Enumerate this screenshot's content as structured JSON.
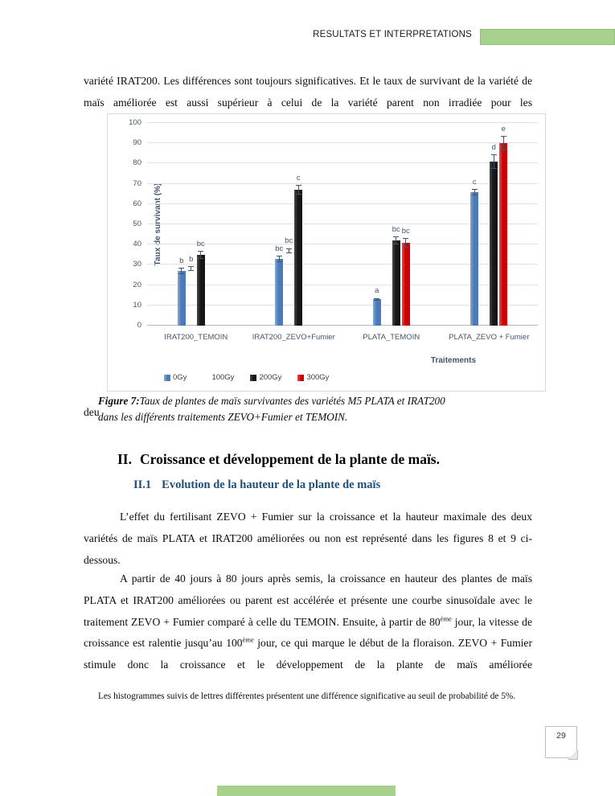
{
  "header": {
    "title": "RESULTATS ET INTERPRETATIONS"
  },
  "colors": {
    "accent_green": "#a9d18e",
    "subheading_blue": "#1f4e79",
    "axis_text": "#44546a"
  },
  "intro_paragraph": "variété IRAT200. Les différences sont toujours significatives. Et le taux de survivant de la variété de maïs améliorée est aussi supérieur à celui de la variété parent non irradiée pour les",
  "chart_data": {
    "type": "bar",
    "title": "",
    "ylabel": "Taux de survivant (%)",
    "xlabel": "Traitements",
    "ylim": [
      0,
      100
    ],
    "ytick_step": 10,
    "grid": true,
    "legend_position": "bottom",
    "categories": [
      "IRAT200_TEMOIN",
      "IRAT200_ZEVO+Fumier",
      "PLATA_TEMOIN",
      "PLATA_ZEVO + Fumier"
    ],
    "series": [
      {
        "name": "0Gy",
        "color": "#4a7ab8",
        "color_light": "#85a9d4",
        "values": [
          27,
          33,
          13,
          66
        ],
        "errors": [
          1.5,
          1.5,
          0.7,
          1.6
        ],
        "letters": [
          "b",
          "bc",
          "a",
          "c"
        ]
      },
      {
        "name": "100Gy",
        "color": "#c55f17",
        "color_light": "#e2control",
        "values": [
          28,
          37,
          null,
          null
        ],
        "errors": [
          1.2,
          1.3,
          null,
          null
        ],
        "letters": [
          "b",
          "bc",
          "",
          ""
        ]
      },
      {
        "name": "200Gy",
        "color": "#161616",
        "color_light": "#4a4a4a",
        "values": [
          35,
          67,
          42,
          81
        ],
        "errors": [
          2,
          2.3,
          2,
          3.6
        ],
        "letters": [
          "bc",
          "c",
          "bc",
          "d"
        ]
      },
      {
        "name": "300Gy",
        "color": "#cc0000",
        "color_light": "#e55050",
        "values": [
          null,
          null,
          41,
          90
        ],
        "errors": [
          null,
          null,
          2.4,
          3.6
        ],
        "letters": [
          "",
          "",
          "bc",
          "e"
        ]
      }
    ]
  },
  "figure_caption": {
    "label": "Figure 7:",
    "line1": "Taux de plantes de maïs survivantes des variétés M5 PLATA et IRAT200",
    "line2": "dans les différents traitements ZEVO+Fumier et TEMOIN.",
    "overlap_word": "deu"
  },
  "section": {
    "number": "II.",
    "title": "Croissance et développement de la plante de maïs."
  },
  "subsection": {
    "number": "II.1",
    "title": "Evolution de la hauteur de la plante de maïs"
  },
  "paragraph1": "L’effet du fertilisant ZEVO + Fumier sur la croissance et la hauteur maximale des deux variétés de maïs PLATA et IRAT200 améliorées ou non est représenté dans les figures 8 et 9 ci-dessous.",
  "paragraph2": {
    "p1": "A partir de 40 jours à 80 jours après semis, la croissance en hauteur des plantes de maïs PLATA et IRAT200 améliorées ou parent est accélérée et présente une courbe sinusoïdale avec le traitement ZEVO + Fumier comparé à celle du TEMOIN. Ensuite, à partir de 80",
    "sup1": "ème",
    "p2": " jour, la vitesse de croissance est ralentie jusqu’au 100",
    "sup2": "ème",
    "p3": " jour, ce qui marque le début de la floraison. ZEVO + Fumier stimule donc la croissance et le développement de la plante de maïs améliorée"
  },
  "footnote": "Les histogrammes suivis de lettres différentes présentent une différence significative au seuil de probabilité de 5%.",
  "page_number": "29"
}
